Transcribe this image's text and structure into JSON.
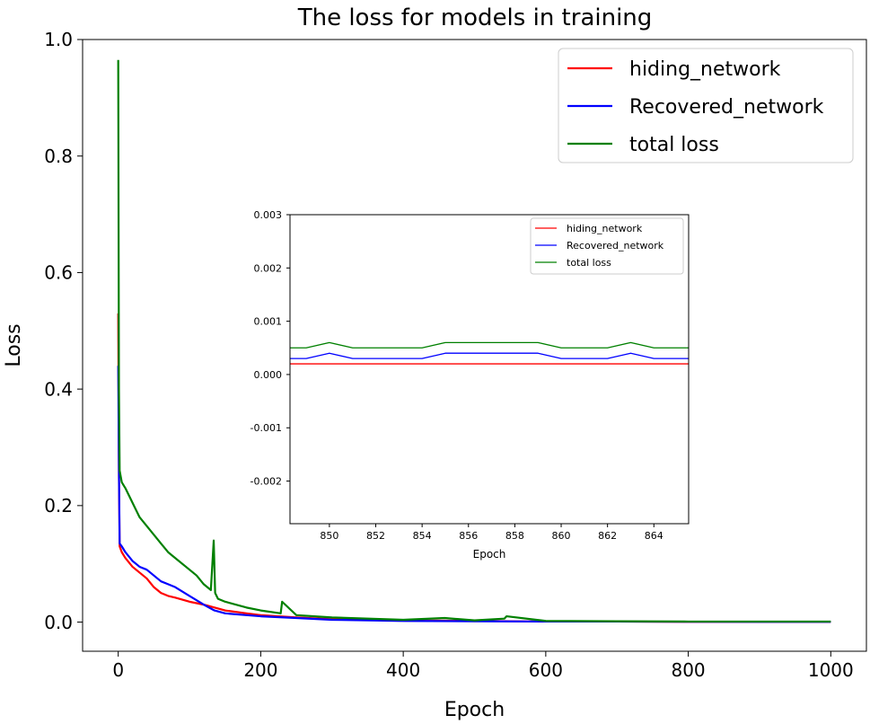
{
  "chart_data": [
    {
      "id": "main",
      "type": "line",
      "title": "The loss for models in training",
      "xlabel": "Epoch",
      "ylabel": "Loss",
      "xlim": [
        -50,
        1050
      ],
      "ylim": [
        -0.05,
        1.0
      ],
      "xticks": [
        0,
        200,
        400,
        600,
        800,
        1000
      ],
      "xtick_labels": [
        "0",
        "200",
        "400",
        "600",
        "800",
        "1000"
      ],
      "yticks": [
        0.0,
        0.2,
        0.4,
        0.6,
        0.8,
        1.0
      ],
      "ytick_labels": [
        "0.0",
        "0.2",
        "0.4",
        "0.6",
        "0.8",
        "1.0"
      ],
      "legend_position": "top-right",
      "series": [
        {
          "name": "hiding_network",
          "color": "#ff0000",
          "x": [
            0,
            1,
            2,
            5,
            10,
            20,
            30,
            40,
            50,
            60,
            70,
            80,
            100,
            120,
            135,
            150,
            180,
            200,
            250,
            300,
            400,
            500,
            600,
            700,
            800,
            900,
            1000
          ],
          "y": [
            0.53,
            0.25,
            0.13,
            0.12,
            0.11,
            0.095,
            0.085,
            0.075,
            0.06,
            0.05,
            0.045,
            0.042,
            0.035,
            0.03,
            0.025,
            0.02,
            0.015,
            0.012,
            0.008,
            0.005,
            0.003,
            0.002,
            0.001,
            0.001,
            0.0005,
            0.0005,
            0.0004
          ]
        },
        {
          "name": "Recovered_network",
          "color": "#0000ff",
          "x": [
            0,
            1,
            2,
            5,
            10,
            20,
            30,
            40,
            50,
            60,
            70,
            80,
            100,
            120,
            135,
            150,
            180,
            200,
            250,
            300,
            400,
            500,
            600,
            700,
            800,
            900,
            1000
          ],
          "y": [
            0.44,
            0.26,
            0.135,
            0.13,
            0.12,
            0.105,
            0.095,
            0.09,
            0.08,
            0.07,
            0.065,
            0.06,
            0.045,
            0.03,
            0.02,
            0.015,
            0.012,
            0.01,
            0.007,
            0.004,
            0.002,
            0.0015,
            0.001,
            0.001,
            0.0006,
            0.0005,
            0.0005
          ]
        },
        {
          "name": "total loss",
          "color": "#008000",
          "x": [
            0,
            1,
            2,
            5,
            10,
            20,
            30,
            40,
            50,
            60,
            70,
            80,
            100,
            110,
            120,
            130,
            134,
            136,
            140,
            150,
            180,
            200,
            228,
            230,
            250,
            300,
            400,
            458,
            500,
            542,
            545,
            600,
            700,
            800,
            900,
            1000
          ],
          "y": [
            0.965,
            0.4,
            0.26,
            0.24,
            0.23,
            0.205,
            0.18,
            0.165,
            0.15,
            0.135,
            0.12,
            0.11,
            0.09,
            0.08,
            0.065,
            0.055,
            0.14,
            0.05,
            0.04,
            0.035,
            0.025,
            0.02,
            0.015,
            0.035,
            0.012,
            0.008,
            0.004,
            0.007,
            0.003,
            0.006,
            0.01,
            0.002,
            0.0015,
            0.001,
            0.001,
            0.001
          ]
        }
      ]
    },
    {
      "id": "inset",
      "type": "line",
      "title": "",
      "xlabel": "Epoch",
      "ylabel": "",
      "xlim": [
        848.3,
        865.5
      ],
      "ylim": [
        -0.0028,
        0.003
      ],
      "xticks": [
        850,
        852,
        854,
        856,
        858,
        860,
        862,
        864
      ],
      "xtick_labels": [
        "850",
        "852",
        "854",
        "856",
        "858",
        "860",
        "862",
        "864"
      ],
      "yticks": [
        -0.002,
        -0.001,
        0.0,
        0.001,
        0.002,
        0.003
      ],
      "ytick_labels": [
        "-0.002",
        "-0.001",
        "0.000",
        "0.001",
        "0.002",
        "0.003"
      ],
      "legend_position": "top-right",
      "series": [
        {
          "name": "hiding_network",
          "color": "#ff0000",
          "x": [
            848,
            849,
            850,
            851,
            852,
            853,
            854,
            855,
            856,
            857,
            858,
            859,
            860,
            861,
            862,
            863,
            864,
            865,
            866
          ],
          "y": [
            0.0002,
            0.0002,
            0.0002,
            0.0002,
            0.0002,
            0.0002,
            0.0002,
            0.0002,
            0.0002,
            0.0002,
            0.0002,
            0.0002,
            0.0002,
            0.0002,
            0.0002,
            0.0002,
            0.0002,
            0.0002,
            0.0002
          ]
        },
        {
          "name": "Recovered_network",
          "color": "#0000ff",
          "x": [
            848,
            849,
            850,
            851,
            852,
            853,
            854,
            855,
            856,
            857,
            858,
            859,
            860,
            861,
            862,
            863,
            864,
            865,
            866
          ],
          "y": [
            0.0003,
            0.0003,
            0.0004,
            0.0003,
            0.0003,
            0.0003,
            0.0003,
            0.0004,
            0.0004,
            0.0004,
            0.0004,
            0.0004,
            0.0003,
            0.0003,
            0.0003,
            0.0004,
            0.0003,
            0.0003,
            0.0003
          ]
        },
        {
          "name": "total loss",
          "color": "#008000",
          "x": [
            848,
            849,
            850,
            851,
            852,
            853,
            854,
            855,
            856,
            857,
            858,
            859,
            860,
            861,
            862,
            863,
            864,
            865,
            866
          ],
          "y": [
            0.0005,
            0.0005,
            0.0006,
            0.0005,
            0.0005,
            0.0005,
            0.0005,
            0.0006,
            0.0006,
            0.0006,
            0.0006,
            0.0006,
            0.0005,
            0.0005,
            0.0005,
            0.0006,
            0.0005,
            0.0005,
            0.0005
          ]
        }
      ]
    }
  ]
}
